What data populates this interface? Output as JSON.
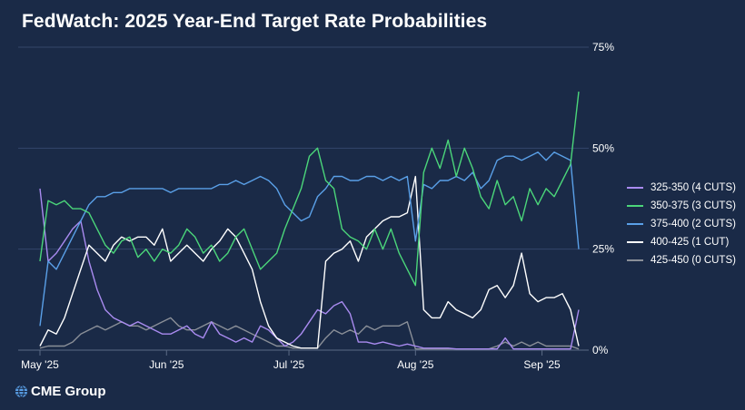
{
  "title": "FedWatch: 2025 Year-End Target Rate Probabilities",
  "brand": "CME Group",
  "chart_data": {
    "type": "line",
    "ylim": [
      0,
      75
    ],
    "yticks": [
      0,
      25,
      50,
      75
    ],
    "ytick_labels": [
      "0%",
      "25%",
      "50%",
      "75%"
    ],
    "xlim": [
      0,
      132
    ],
    "xticks": [
      0,
      31,
      61,
      92,
      123
    ],
    "xtick_labels": [
      "May '25",
      "Jun '25",
      "Jul '25",
      "Aug '25",
      "Sep '25"
    ],
    "legend_position": "right",
    "grid": "horizontal",
    "series": [
      {
        "name": "325-350 (4 CUTS)",
        "color": "#a98bf0",
        "x": [
          0,
          2,
          4,
          6,
          8,
          10,
          12,
          14,
          16,
          18,
          20,
          22,
          24,
          26,
          28,
          30,
          32,
          34,
          36,
          38,
          40,
          42,
          44,
          46,
          48,
          50,
          52,
          54,
          56,
          58,
          60,
          62,
          64,
          66,
          68,
          70,
          72,
          74,
          76,
          78,
          80,
          82,
          84,
          86,
          88,
          90,
          92,
          94,
          96,
          98,
          100,
          102,
          104,
          106,
          108,
          110,
          112,
          114,
          116,
          118,
          120,
          122,
          124,
          126,
          128,
          130,
          132
        ],
        "values": [
          40,
          22,
          24,
          27,
          30,
          32,
          22,
          15,
          10,
          8,
          7,
          6,
          7,
          6,
          5,
          4,
          4,
          5,
          6,
          4,
          3,
          7,
          4,
          3,
          2,
          3,
          2,
          6,
          5,
          3,
          1,
          2,
          4,
          7,
          10,
          9,
          11,
          12,
          9,
          2,
          2,
          1.5,
          2,
          1.5,
          1,
          1.5,
          1,
          0.5,
          0.5,
          0.5,
          0.5,
          0.3,
          0.3,
          0.3,
          0.3,
          0.3,
          0.3,
          3,
          0.3,
          0.3,
          0.3,
          0.3,
          0.3,
          0.3,
          0.3,
          0.3,
          10
        ]
      },
      {
        "name": "350-375 (3 CUTS)",
        "color": "#4bd67a",
        "x": [
          0,
          2,
          4,
          6,
          8,
          10,
          12,
          14,
          16,
          18,
          20,
          22,
          24,
          26,
          28,
          30,
          32,
          34,
          36,
          38,
          40,
          42,
          44,
          46,
          48,
          50,
          52,
          54,
          56,
          58,
          60,
          62,
          64,
          66,
          68,
          70,
          72,
          74,
          76,
          78,
          80,
          82,
          84,
          86,
          88,
          90,
          92,
          94,
          96,
          98,
          100,
          102,
          104,
          106,
          108,
          110,
          112,
          114,
          116,
          118,
          120,
          122,
          124,
          126,
          128,
          130,
          132
        ],
        "values": [
          22,
          37,
          36,
          37,
          35,
          35,
          34,
          30,
          26,
          24,
          27,
          28,
          23,
          25,
          22,
          25,
          24,
          26,
          30,
          28,
          24,
          26,
          22,
          24,
          28,
          30,
          25,
          20,
          22,
          24,
          30,
          35,
          40,
          48,
          50,
          42,
          40,
          30,
          28,
          27,
          25,
          30,
          25,
          30,
          24,
          20,
          16,
          44,
          50,
          45,
          52,
          43,
          50,
          45,
          38,
          35,
          42,
          36,
          38,
          32,
          40,
          36,
          40,
          38,
          42,
          46,
          64
        ]
      },
      {
        "name": "375-400 (2 CUTS)",
        "color": "#5aa0e8",
        "x": [
          0,
          2,
          4,
          6,
          8,
          10,
          12,
          14,
          16,
          18,
          20,
          22,
          24,
          26,
          28,
          30,
          32,
          34,
          36,
          38,
          40,
          42,
          44,
          46,
          48,
          50,
          52,
          54,
          56,
          58,
          60,
          62,
          64,
          66,
          68,
          70,
          72,
          74,
          76,
          78,
          80,
          82,
          84,
          86,
          88,
          90,
          92,
          94,
          96,
          98,
          100,
          102,
          104,
          106,
          108,
          110,
          112,
          114,
          116,
          118,
          120,
          122,
          124,
          126,
          128,
          130,
          132
        ],
        "values": [
          6,
          22,
          20,
          24,
          28,
          32,
          36,
          38,
          38,
          39,
          39,
          40,
          40,
          40,
          40,
          40,
          39,
          40,
          40,
          40,
          40,
          40,
          41,
          41,
          42,
          41,
          42,
          43,
          42,
          40,
          36,
          34,
          32,
          33,
          38,
          40,
          43,
          43,
          42,
          42,
          43,
          43,
          42,
          43,
          42,
          43,
          27,
          41,
          40,
          42,
          42,
          43,
          42,
          44,
          40,
          42,
          47,
          48,
          48,
          47,
          48,
          49,
          47,
          49,
          48,
          47,
          25
        ]
      },
      {
        "name": "400-425 (1 CUT)",
        "color": "#ffffff",
        "x": [
          0,
          2,
          4,
          6,
          8,
          10,
          12,
          14,
          16,
          18,
          20,
          22,
          24,
          26,
          28,
          30,
          32,
          34,
          36,
          38,
          40,
          42,
          44,
          46,
          48,
          50,
          52,
          54,
          56,
          58,
          60,
          62,
          64,
          66,
          68,
          70,
          72,
          74,
          76,
          78,
          80,
          82,
          84,
          86,
          88,
          90,
          92,
          94,
          96,
          98,
          100,
          102,
          104,
          106,
          108,
          110,
          112,
          114,
          116,
          118,
          120,
          122,
          124,
          126,
          128,
          130,
          132
        ],
        "values": [
          1,
          5,
          4,
          8,
          14,
          20,
          26,
          24,
          22,
          26,
          28,
          27,
          28,
          28,
          26,
          30,
          22,
          24,
          26,
          24,
          22,
          25,
          27,
          30,
          28,
          24,
          20,
          12,
          6,
          3,
          2,
          1,
          0.5,
          0.5,
          0.5,
          22,
          24,
          25,
          27,
          22,
          28,
          30,
          32,
          33,
          33,
          34,
          43,
          10,
          8,
          8,
          12,
          10,
          9,
          8,
          10,
          15,
          16,
          13,
          16,
          24,
          14,
          12,
          13,
          13,
          14,
          10,
          1
        ]
      },
      {
        "name": "425-450 (0 CUTS)",
        "color": "#8a8f98",
        "x": [
          0,
          2,
          4,
          6,
          8,
          10,
          12,
          14,
          16,
          18,
          20,
          22,
          24,
          26,
          28,
          30,
          32,
          34,
          36,
          38,
          40,
          42,
          44,
          46,
          48,
          50,
          52,
          54,
          56,
          58,
          60,
          62,
          64,
          66,
          68,
          70,
          72,
          74,
          76,
          78,
          80,
          82,
          84,
          86,
          88,
          90,
          92,
          94,
          96,
          98,
          100,
          102,
          104,
          106,
          108,
          110,
          112,
          114,
          116,
          118,
          120,
          122,
          124,
          126,
          128,
          130,
          132
        ],
        "values": [
          0.5,
          1,
          1,
          1,
          2,
          4,
          5,
          6,
          5,
          6,
          7,
          6,
          6,
          5,
          6,
          7,
          8,
          6,
          5,
          5,
          6,
          7,
          6,
          5,
          6,
          5,
          4,
          3,
          2,
          1,
          1,
          0.5,
          0.5,
          0.5,
          0.5,
          3,
          5,
          4,
          5,
          4,
          6,
          5,
          6,
          6,
          6,
          7,
          0.3,
          0.3,
          0.3,
          0.3,
          0.3,
          0.3,
          0.3,
          0.3,
          0.3,
          0.3,
          1,
          2,
          1,
          2,
          1,
          2,
          1,
          1,
          1,
          1,
          0.3
        ]
      }
    ]
  }
}
